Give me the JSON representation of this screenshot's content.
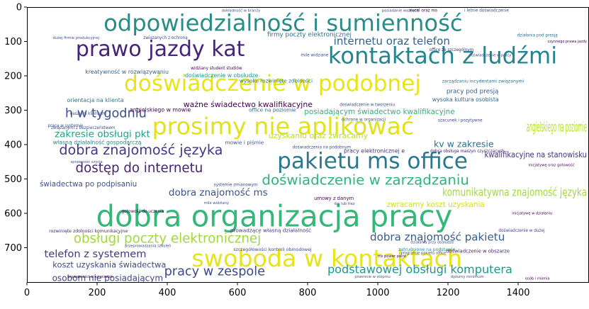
{
  "chart_data": {
    "type": "wordcloud",
    "title": "",
    "xlabel": "",
    "ylabel": "",
    "xlim": [
      0,
      1600
    ],
    "ylim": [
      800,
      0
    ],
    "x_ticks": [
      0,
      200,
      400,
      600,
      800,
      1000,
      1200,
      1400
    ],
    "y_ticks": [
      0,
      100,
      200,
      300,
      400,
      500,
      600,
      700
    ],
    "grid": false,
    "background": "#ffffff",
    "words": [
      {
        "text": "odpowiedzialność i sumienność",
        "x": 730,
        "y": 50,
        "size": 62,
        "color": "#2a8c89"
      },
      {
        "text": "prawo jazdy kat",
        "x": 380,
        "y": 125,
        "size": 58,
        "color": "#46237a"
      },
      {
        "text": "kontaktach z ludźmi",
        "x": 1185,
        "y": 145,
        "size": 62,
        "color": "#25858e"
      },
      {
        "text": "doświadczenie w podobnej",
        "x": 700,
        "y": 225,
        "size": 60,
        "color": "#e7e419"
      },
      {
        "text": "prosimy nie aplikować",
        "x": 730,
        "y": 350,
        "size": 64,
        "color": "#e0e318"
      },
      {
        "text": "h w tygodniu",
        "x": 225,
        "y": 310,
        "size": 34,
        "color": "#3b528b"
      },
      {
        "text": "dobra znajomość języka",
        "x": 325,
        "y": 418,
        "size": 37,
        "color": "#443983"
      },
      {
        "text": "pakietu ms office",
        "x": 985,
        "y": 450,
        "size": 60,
        "color": "#2a788e"
      },
      {
        "text": "dostęp do internetu",
        "x": 320,
        "y": 470,
        "size": 35,
        "color": "#482374"
      },
      {
        "text": "doświadczenie w zarządzaniu",
        "x": 965,
        "y": 505,
        "size": 38,
        "color": "#2fb47c"
      },
      {
        "text": "dobra organizacja pracy",
        "x": 705,
        "y": 615,
        "size": 80,
        "color": "#35b779"
      },
      {
        "text": "swoboda w kontaktach",
        "x": 855,
        "y": 735,
        "size": 64,
        "color": "#e7e419"
      },
      {
        "text": "obsługi poczty elektronicznej",
        "x": 400,
        "y": 675,
        "size": 35,
        "color": "#a0da39"
      },
      {
        "text": "dobra znajomość pakietu",
        "x": 1170,
        "y": 670,
        "size": 29,
        "color": "#365c8d"
      },
      {
        "text": "podstawowej obsługi komputera",
        "x": 1120,
        "y": 765,
        "size": 31,
        "color": "#1f988b"
      },
      {
        "text": "pracy w zespole",
        "x": 535,
        "y": 770,
        "size": 34,
        "color": "#3e4a89"
      },
      {
        "text": "telefon z systemem",
        "x": 195,
        "y": 720,
        "size": 28,
        "color": "#453781"
      },
      {
        "text": "internetu oraz telefon",
        "x": 1040,
        "y": 100,
        "size": 29,
        "color": "#33628d"
      },
      {
        "text": "zakresie obsługi pkt",
        "x": 215,
        "y": 370,
        "size": 26,
        "color": "#20a386"
      },
      {
        "text": "dobra znajomość ms",
        "x": 545,
        "y": 540,
        "size": 26,
        "color": "#3b528b"
      },
      {
        "text": "koszt uzyskania świadectwa",
        "x": 235,
        "y": 750,
        "size": 22,
        "color": "#3e4a89"
      },
      {
        "text": "osobom nie posiadającym",
        "x": 230,
        "y": 790,
        "size": 23,
        "color": "#414487"
      },
      {
        "text": "ważne świadectwo kwalifikacyjne",
        "x": 630,
        "y": 285,
        "size": 21,
        "color": "#440154"
      },
      {
        "text": "posiadającym świadectwo kwalifikacyjne",
        "x": 1005,
        "y": 305,
        "size": 20,
        "color": "#2fb47c"
      },
      {
        "text": "angielskiego na poziomie",
        "x": 1510,
        "y": 350,
        "size": 36,
        "color": "#b5de2b"
      },
      {
        "text": "kwalifikacyjne na stanowisku",
        "x": 1450,
        "y": 430,
        "size": 22,
        "color": "#46327e"
      },
      {
        "text": "komunikatywna znajomość języka",
        "x": 1390,
        "y": 540,
        "size": 30,
        "color": "#a5db36"
      },
      {
        "text": "kv w zakresie",
        "x": 1245,
        "y": 400,
        "size": 24,
        "color": "#2c728e"
      },
      {
        "text": "uzyskaniu oraz zwracamy",
        "x": 830,
        "y": 375,
        "size": 21,
        "color": "#b8de29"
      },
      {
        "text": "zwracamy koszt uzyskania",
        "x": 1165,
        "y": 575,
        "size": 20,
        "color": "#d0e11c"
      },
      {
        "text": "świadectwa po podpisaniu",
        "x": 175,
        "y": 515,
        "size": 20,
        "color": "#3b528b"
      },
      {
        "text": "pracy pod presją",
        "x": 1270,
        "y": 245,
        "size": 17,
        "color": "#365c8d"
      },
      {
        "text": "firmy poczty elektronicznej",
        "x": 805,
        "y": 80,
        "size": 17,
        "color": "#2d708e"
      },
      {
        "text": "własną działalność gospodarczą",
        "x": 200,
        "y": 395,
        "size": 15,
        "color": "#24868e"
      },
      {
        "text": "angielskiego w mowie",
        "x": 380,
        "y": 300,
        "size": 15,
        "color": "#440154"
      },
      {
        "text": "office na poziomie",
        "x": 700,
        "y": 300,
        "size": 14,
        "color": "#31688e"
      },
      {
        "text": "doświadczenie w obsłudze",
        "x": 555,
        "y": 200,
        "size": 15,
        "color": "#1f988b"
      },
      {
        "text": "orientacja na klienta",
        "x": 195,
        "y": 272,
        "size": 15,
        "color": "#2a788e"
      },
      {
        "text": "kreatywność w rozwiązywaniu",
        "x": 285,
        "y": 190,
        "size": 15,
        "color": "#33638d"
      },
      {
        "text": "wysoko rozwinięte zdolności",
        "x": 710,
        "y": 215,
        "size": 14,
        "color": "#2a788e"
      },
      {
        "text": "mowie i piśmie",
        "x": 620,
        "y": 395,
        "size": 14,
        "color": "#3b528b"
      },
      {
        "text": "pracy elektronicznej e",
        "x": 990,
        "y": 420,
        "size": 15,
        "color": "#443983"
      },
      {
        "text": "wysoka kultura osobista",
        "x": 1250,
        "y": 270,
        "size": 15,
        "color": "#31688e"
      },
      {
        "text": "zarządzaniu incydentami związanymi",
        "x": 1300,
        "y": 215,
        "size": 12,
        "color": "#2c728e"
      },
      {
        "text": "prowadzące własną działalność",
        "x": 695,
        "y": 650,
        "size": 14,
        "color": "#443983"
      },
      {
        "text": "szczegółowości kontroli obmodowej",
        "x": 700,
        "y": 705,
        "size": 12,
        "color": "#3e4a89"
      },
      {
        "text": "rozwinięte zdolności komunikacyjne",
        "x": 175,
        "y": 652,
        "size": 12,
        "color": "#482878"
      },
      {
        "text": "związanymi z bezpieczeństwem",
        "x": 160,
        "y": 352,
        "size": 11,
        "color": "#3b528b"
      },
      {
        "text": "umowy z danym",
        "x": 875,
        "y": 557,
        "size": 13,
        "color": "#440154"
      },
      {
        "text": "doświadczenie w obszarze",
        "x": 1285,
        "y": 710,
        "size": 13,
        "color": "#482374"
      },
      {
        "text": "zatrudnione na podstawie",
        "x": 1140,
        "y": 705,
        "size": 12,
        "color": "#21918c"
      },
      {
        "text": "doświadczenie w dużej",
        "x": 1410,
        "y": 650,
        "size": 11,
        "color": "#414487"
      },
      {
        "text": "gotowość do uczenia",
        "x": 330,
        "y": 595,
        "size": 11,
        "color": "#440154"
      },
      {
        "text": "systemie zmianowym",
        "x": 595,
        "y": 518,
        "size": 11,
        "color": "#3e4a89"
      },
      {
        "text": "doświadczenia na podobnym",
        "x": 840,
        "y": 408,
        "size": 11,
        "color": "#3b528b"
      },
      {
        "text": "dobra obsługa maszyn czyszczących",
        "x": 1255,
        "y": 420,
        "size": 11,
        "color": "#482878"
      },
      {
        "text": "szacunek i pozytywne",
        "x": 1235,
        "y": 330,
        "size": 11,
        "color": "#404688"
      },
      {
        "text": "ochronę w organizacji",
        "x": 960,
        "y": 328,
        "size": 11,
        "color": "#3b528b"
      },
      {
        "text": "doświadczenie w tworzeniu",
        "x": 970,
        "y": 285,
        "size": 11,
        "color": "#3b528b"
      },
      {
        "text": "związanych z ochroną",
        "x": 395,
        "y": 90,
        "size": 11,
        "color": "#3e4a89"
      },
      {
        "text": "widziany student studiów",
        "x": 540,
        "y": 178,
        "size": 11,
        "color": "#440154"
      },
      {
        "text": "office ze szczególnym",
        "x": 1210,
        "y": 125,
        "size": 11,
        "color": "#46327e"
      },
      {
        "text": "mile widziane",
        "x": 820,
        "y": 140,
        "size": 11,
        "color": "#3b528b"
      },
      {
        "text": "działania pod presją",
        "x": 1455,
        "y": 82,
        "size": 11,
        "color": "#2c728e"
      },
      {
        "text": "excel oraz ms",
        "x": 1130,
        "y": 10,
        "size": 11,
        "color": "#440154"
      },
      {
        "text": "i letnie doświadczenie",
        "x": 1310,
        "y": 10,
        "size": 11,
        "color": "#3b528b"
      },
      {
        "text": "programie pakietu office",
        "x": 1130,
        "y": 715,
        "size": 10,
        "color": "#3e4a89"
      },
      {
        "text": "ms power point",
        "x": 1040,
        "y": 725,
        "size": 10,
        "color": "#440154"
      },
      {
        "text": "działania przy obsłudze",
        "x": 1155,
        "y": 685,
        "size": 10,
        "color": "#3b528b"
      },
      {
        "text": "naszymi klientami",
        "x": 175,
        "y": 310,
        "size": 11,
        "color": "#3b528b"
      },
      {
        "text": "dużej firmie produkcyjnej",
        "x": 140,
        "y": 90,
        "size": 10,
        "color": "#3b528b"
      },
      {
        "text": "dokładność w branży",
        "x": 610,
        "y": 10,
        "size": 10,
        "color": "#3b528b"
      },
      {
        "text": "posiadanie ważnych",
        "x": 1065,
        "y": 10,
        "size": 10,
        "color": "#3e4a89"
      },
      {
        "text": "czynnego prawa jazdy",
        "x": 1540,
        "y": 100,
        "size": 10,
        "color": "#440154"
      },
      {
        "text": "praca w systemie",
        "x": 110,
        "y": 345,
        "size": 11,
        "color": "#3b528b"
      },
      {
        "text": "dni lub frez",
        "x": 905,
        "y": 572,
        "size": 10,
        "color": "#3e4a89"
      },
      {
        "text": "inicjatywę w działaniu",
        "x": 1440,
        "y": 600,
        "size": 10,
        "color": "#440154"
      },
      {
        "text": "pisemnie w stopniu",
        "x": 985,
        "y": 785,
        "size": 10,
        "color": "#3b528b"
      },
      {
        "text": "osób i mienia",
        "x": 1455,
        "y": 790,
        "size": 10,
        "color": "#440154"
      },
      {
        "text": "dyżurny minimum",
        "x": 1255,
        "y": 785,
        "size": 10,
        "color": "#3e4a89"
      },
      {
        "text": "prywatności oraz wiedza",
        "x": 180,
        "y": 785,
        "size": 10,
        "color": "#440154"
      },
      {
        "text": "mile widziany",
        "x": 540,
        "y": 570,
        "size": 10,
        "color": "#3b528b"
      },
      {
        "text": "przeprowadzania szkoleń",
        "x": 345,
        "y": 695,
        "size": 10,
        "color": "#3e4a89"
      },
      {
        "text": "sprawność szycia",
        "x": 170,
        "y": 450,
        "size": 10,
        "color": "#3b528b"
      },
      {
        "text": "inicjatywę oraz gotowość",
        "x": 1495,
        "y": 460,
        "size": 10,
        "color": "#440154"
      },
      {
        "text": "doświadczenie w pracy",
        "x": 1320,
        "y": 140,
        "size": 10,
        "color": "#3e4a89"
      }
    ]
  }
}
